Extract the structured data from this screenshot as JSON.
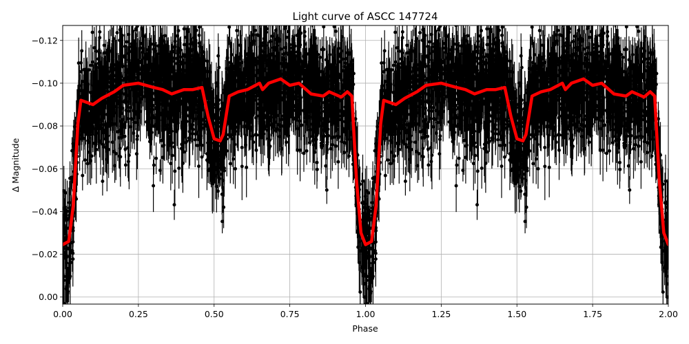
{
  "chart_data": {
    "type": "scatter",
    "title": "Light curve of ASCC 147724",
    "xlabel": "Phase",
    "ylabel": "Δ Magnitude",
    "xlim": [
      0.0,
      2.0
    ],
    "ylim": [
      0.0033,
      -0.127
    ],
    "y_inverted": true,
    "grid": true,
    "legend": null,
    "x_ticks": [
      "0.00",
      "0.25",
      "0.50",
      "0.75",
      "1.00",
      "1.25",
      "1.50",
      "1.75",
      "2.00"
    ],
    "x_tick_values": [
      0.0,
      0.25,
      0.5,
      0.75,
      1.0,
      1.25,
      1.5,
      1.75,
      2.0
    ],
    "y_ticks": [
      "−0.12",
      "−0.10",
      "−0.08",
      "−0.06",
      "−0.04",
      "−0.02",
      "0.00"
    ],
    "y_tick_values": [
      -0.12,
      -0.1,
      -0.08,
      -0.06,
      -0.04,
      -0.02,
      0.0
    ],
    "series": [
      {
        "name": "observations",
        "style": "black points with vertical error bars",
        "color": "#000000",
        "description": "Dense phase-folded photometry (repeated over two cycles); out-of-eclipse scatter roughly -0.04 to -0.12, primary eclipse near phase 0/1 reaching ~0.00, secondary eclipse near phase 0.5/1.5 around -0.05 to -0.07"
      },
      {
        "name": "binned model",
        "style": "thick red line",
        "color": "#ff0000",
        "x": [
          0.0,
          0.02,
          0.035,
          0.05,
          0.06,
          0.08,
          0.1,
          0.13,
          0.17,
          0.2,
          0.25,
          0.3,
          0.33,
          0.36,
          0.4,
          0.43,
          0.46,
          0.48,
          0.5,
          0.52,
          0.53,
          0.55,
          0.58,
          0.61,
          0.65,
          0.66,
          0.68,
          0.72,
          0.75,
          0.78,
          0.82,
          0.86,
          0.88,
          0.92,
          0.94,
          0.955,
          0.97,
          0.985,
          1.0
        ],
        "y": [
          -0.0245,
          -0.026,
          -0.043,
          -0.081,
          -0.092,
          -0.091,
          -0.09,
          -0.093,
          -0.096,
          -0.099,
          -0.1,
          -0.098,
          -0.097,
          -0.095,
          -0.097,
          -0.097,
          -0.098,
          -0.0845,
          -0.074,
          -0.073,
          -0.076,
          -0.094,
          -0.096,
          -0.097,
          -0.1,
          -0.097,
          -0.1,
          -0.102,
          -0.099,
          -0.1,
          -0.095,
          -0.094,
          -0.096,
          -0.0935,
          -0.096,
          -0.094,
          -0.055,
          -0.03,
          -0.0245
        ],
        "period_repeat": 1.0
      }
    ],
    "features": {
      "primary_eclipse_phase": [
        0.0,
        1.0,
        2.0
      ],
      "primary_eclipse_depth": -0.0245,
      "secondary_eclipse_phase": [
        0.5,
        1.5
      ],
      "secondary_eclipse_depth": -0.073,
      "out_of_eclipse_level": -0.097
    }
  },
  "colors": {
    "model_line": "#ff0000",
    "points": "#000000",
    "grid": "#b0b0b0",
    "axes": "#000000",
    "background": "#ffffff"
  }
}
